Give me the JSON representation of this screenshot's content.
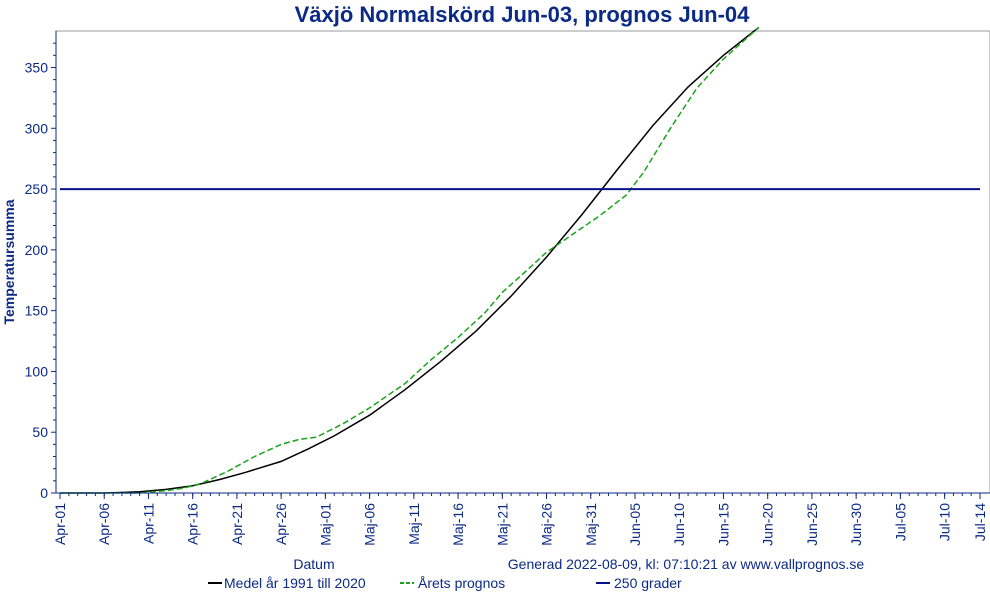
{
  "chart_data": {
    "type": "line",
    "title": "Växjö Normalskörd Jun-03, prognos Jun-04",
    "xlabel": "Datum",
    "ylabel": "Temperatursumma",
    "footer_note": "Generad 2022-08-09, kl: 07:10:21 av www.vallprognos.se",
    "xlim": [
      "2022-04-01",
      "2022-07-14"
    ],
    "ylim": [
      0,
      380
    ],
    "y_ticks": [
      0,
      50,
      100,
      150,
      200,
      250,
      300,
      350
    ],
    "x_tick_labels": [
      "Apr-01",
      "Apr-06",
      "Apr-11",
      "Apr-16",
      "Apr-21",
      "Apr-26",
      "Maj-01",
      "Maj-06",
      "Maj-11",
      "Maj-16",
      "Maj-21",
      "Maj-26",
      "Maj-31",
      "Jun-05",
      "Jun-10",
      "Jun-15",
      "Jun-20",
      "Jun-25",
      "Jun-30",
      "Jul-05",
      "Jul-10",
      "Jul-14"
    ],
    "x_tick_dates": [
      "2022-04-01",
      "2022-04-06",
      "2022-04-11",
      "2022-04-16",
      "2022-04-21",
      "2022-04-26",
      "2022-05-01",
      "2022-05-06",
      "2022-05-11",
      "2022-05-16",
      "2022-05-21",
      "2022-05-26",
      "2022-05-31",
      "2022-06-05",
      "2022-06-10",
      "2022-06-15",
      "2022-06-20",
      "2022-06-25",
      "2022-06-30",
      "2022-07-05",
      "2022-07-10",
      "2022-07-14"
    ],
    "grid": false,
    "legend_placement": "bottom",
    "series": [
      {
        "name": "Medel år 1991 till 2020",
        "color": "#000000",
        "style": "solid",
        "x": [
          "2022-04-01",
          "2022-04-06",
          "2022-04-10",
          "2022-04-13",
          "2022-04-16",
          "2022-04-19",
          "2022-04-22",
          "2022-04-26",
          "2022-04-29",
          "2022-05-02",
          "2022-05-06",
          "2022-05-10",
          "2022-05-14",
          "2022-05-18",
          "2022-05-22",
          "2022-05-26",
          "2022-05-30",
          "2022-06-03",
          "2022-06-07",
          "2022-06-11",
          "2022-06-15",
          "2022-06-19"
        ],
        "y": [
          0,
          0,
          1,
          3,
          6,
          11,
          17,
          26,
          36,
          47,
          64,
          85,
          108,
          133,
          162,
          194,
          229,
          266,
          302,
          334,
          360,
          383
        ]
      },
      {
        "name": "Årets prognos",
        "color": "#1aa31a",
        "style": "dashed",
        "x": [
          "2022-04-01",
          "2022-04-10",
          "2022-04-13",
          "2022-04-15",
          "2022-04-17",
          "2022-04-20",
          "2022-04-23",
          "2022-04-26",
          "2022-04-28",
          "2022-04-30",
          "2022-05-03",
          "2022-05-06",
          "2022-05-08",
          "2022-05-10",
          "2022-05-13",
          "2022-05-16",
          "2022-05-19",
          "2022-05-21",
          "2022-05-23",
          "2022-05-26",
          "2022-05-29",
          "2022-06-01",
          "2022-06-04",
          "2022-06-06",
          "2022-06-09",
          "2022-06-12",
          "2022-06-15",
          "2022-06-19"
        ],
        "y": [
          0,
          0,
          2,
          4,
          8,
          18,
          30,
          40,
          44,
          46,
          57,
          70,
          80,
          90,
          110,
          128,
          148,
          165,
          178,
          198,
          213,
          228,
          245,
          264,
          300,
          333,
          357,
          383
        ]
      },
      {
        "name": "250 grader",
        "color": "#0a128a",
        "style": "solid",
        "x": [
          "2022-04-01",
          "2022-07-14"
        ],
        "y": [
          250,
          250
        ]
      }
    ]
  }
}
